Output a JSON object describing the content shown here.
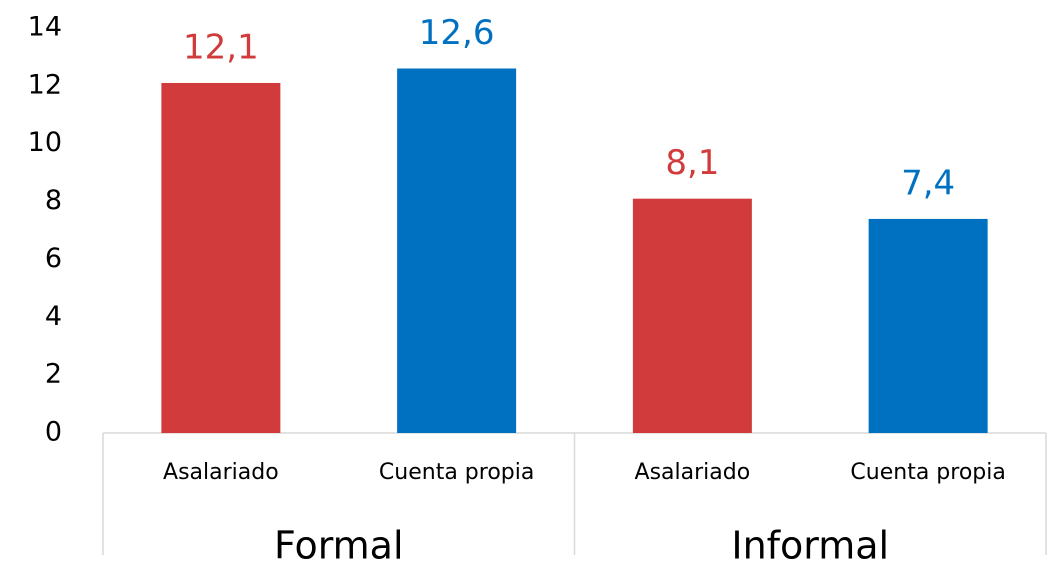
{
  "chart_data": {
    "type": "bar",
    "groups": [
      {
        "label": "Formal",
        "categories": [
          "Asalariado",
          "Cuenta propia"
        ],
        "values": [
          12.1,
          12.6
        ],
        "value_labels": [
          "12,1",
          "12,6"
        ]
      },
      {
        "label": "Informal",
        "categories": [
          "Asalariado",
          "Cuenta propia"
        ],
        "values": [
          8.1,
          7.4
        ],
        "value_labels": [
          "8,1",
          "7,4"
        ]
      }
    ],
    "colors": [
      "#d13b3b",
      "#0070c0"
    ],
    "ylim": [
      0,
      14
    ],
    "yticks": [
      0,
      2,
      4,
      6,
      8,
      10,
      12,
      14
    ]
  }
}
